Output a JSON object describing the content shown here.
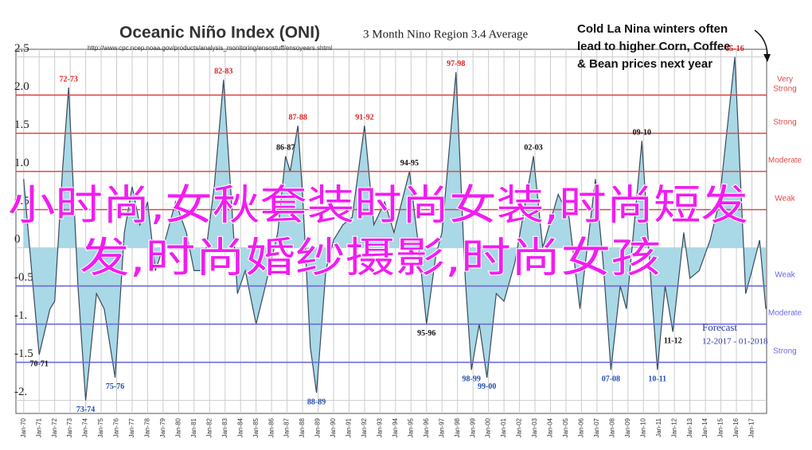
{
  "chart_data": {
    "type": "area",
    "title": "Oceanic Niño Index (ONI)",
    "subtitle": "3 Month Nino Region 3.4 Average",
    "source": "http://www.cpc.ncep.noaa.gov/products/analysis_monitoring/ensostuff/ensoyears.shtml",
    "callout": [
      "Cold La Nina winters often",
      "lead to higher Corn, Coffee",
      "& Bean prices next year"
    ],
    "forecast": "Forecast",
    "forecast_period": "12-2017 - 01-2018",
    "overlay_text": [
      "小时尚,女秋套装时尚女装,时尚短发",
      "发,时尚婚纱摄影,时尚女孩"
    ],
    "color": "#a9d8e6",
    "line_color": "#3a4a5a",
    "grid": true,
    "x": [
      1970.0,
      1970.6,
      1971.0,
      1971.7,
      1972.0,
      1972.5,
      1972.9,
      1973.5,
      1974.0,
      1974.7,
      1975.2,
      1975.9,
      1976.5,
      1977.0,
      1977.5,
      1978.0,
      1978.5,
      1979.0,
      1979.8,
      1980.5,
      1981.0,
      1981.6,
      1982.3,
      1982.9,
      1983.8,
      1984.3,
      1985.0,
      1985.6,
      1986.4,
      1986.9,
      1987.2,
      1987.7,
      1988.0,
      1988.5,
      1988.9,
      1989.5,
      1990.0,
      1990.6,
      1991.2,
      1992.0,
      1992.6,
      1993.3,
      1993.9,
      1994.9,
      1995.5,
      1996.0,
      1996.6,
      1997.0,
      1997.9,
      1998.5,
      1998.9,
      1999.4,
      1999.9,
      2000.5,
      2001.0,
      2001.7,
      2002.9,
      2003.5,
      2004.5,
      2005.2,
      2005.9,
      2006.9,
      2007.4,
      2007.9,
      2008.5,
      2008.9,
      2009.9,
      2010.5,
      2010.9,
      2011.4,
      2011.9,
      2012.6,
      2013.0,
      2013.6,
      2014.3,
      2014.9,
      2015.9,
      2016.6,
      2017.0,
      2017.5,
      2017.9
    ],
    "values": [
      0.9,
      -0.5,
      -1.4,
      -0.8,
      -0.7,
      1.0,
      2.1,
      -0.5,
      -2.0,
      -0.6,
      -0.8,
      -1.7,
      0.2,
      0.8,
      0.3,
      0.6,
      -0.3,
      0.0,
      0.6,
      0.2,
      -0.3,
      -0.3,
      0.8,
      2.2,
      -0.6,
      -0.3,
      -1.0,
      -0.5,
      0.2,
      1.2,
      1.0,
      1.6,
      0.7,
      -1.3,
      -1.9,
      -0.3,
      0.1,
      0.3,
      0.4,
      1.6,
      0.3,
      0.6,
      0.2,
      1.0,
      0.0,
      -1.0,
      -0.1,
      0.2,
      2.3,
      -0.4,
      -1.6,
      -1.0,
      -1.7,
      -0.6,
      -0.7,
      -0.2,
      1.2,
      0.0,
      0.7,
      0.4,
      -0.8,
      0.9,
      -0.2,
      -1.6,
      -0.5,
      -0.8,
      1.4,
      -0.5,
      -1.6,
      -0.5,
      -1.1,
      0.2,
      -0.4,
      -0.3,
      0.1,
      0.6,
      2.5,
      -0.6,
      -0.3,
      0.1,
      -0.8
    ],
    "point_labels": [
      null,
      null,
      "70-71",
      null,
      null,
      null,
      "72-73",
      null,
      "73-74",
      null,
      null,
      "75-76",
      null,
      null,
      null,
      null,
      null,
      null,
      null,
      null,
      null,
      null,
      null,
      "82-83",
      null,
      null,
      null,
      null,
      null,
      "86-87",
      null,
      "87-88",
      null,
      null,
      "88-89",
      null,
      null,
      null,
      null,
      "91-92",
      null,
      null,
      null,
      "94-95",
      null,
      "95-96",
      null,
      null,
      "97-98",
      null,
      "98-99",
      null,
      "99-00",
      null,
      null,
      null,
      "02-03",
      null,
      null,
      null,
      null,
      null,
      null,
      "07-08",
      null,
      null,
      "09-10",
      null,
      "10-11",
      null,
      "11-12",
      null,
      null,
      null,
      null,
      null,
      "15-16",
      null,
      null,
      null,
      null
    ],
    "thresholds": [
      {
        "value": 2,
        "label": [
          "Very",
          "Strong"
        ],
        "color": "#e04848"
      },
      {
        "value": 1.5,
        "label": [
          "Strong"
        ],
        "color": "#e04848"
      },
      {
        "value": 1,
        "label": [
          "Moderate"
        ],
        "color": "#e04848"
      },
      {
        "value": 0.5,
        "label": [
          "Weak"
        ],
        "color": "#e04848"
      },
      {
        "value": -0.5,
        "label": [
          "Weak"
        ],
        "color": "#6a6ae0"
      },
      {
        "value": -1,
        "label": [
          "Moderate"
        ],
        "color": "#6a6ae0"
      },
      {
        "value": -1.5,
        "label": [
          "Strong"
        ],
        "color": "#6a6ae0"
      }
    ],
    "xlim": [
      1969.5,
      2017.95
    ],
    "ylim": [
      -2.17,
      2.6
    ],
    "yticks": [
      {
        "value": -2,
        "label": "-2."
      },
      -1.5,
      {
        "value": -1,
        "label": "-1."
      },
      -0.5,
      0,
      0.5,
      {
        "value": 1,
        "label": "1.0"
      },
      1.5,
      {
        "value": 2,
        "label": "2.0"
      },
      2.5
    ],
    "xticks": [
      {
        "value": 1970,
        "label": "Jan-70"
      },
      {
        "value": 1971,
        "label": "Jan-71"
      },
      {
        "value": 1972,
        "label": "Jan-72"
      },
      {
        "value": 1973,
        "label": "Jan-73"
      },
      {
        "value": 1974,
        "label": "Jan-74"
      },
      {
        "value": 1975,
        "label": "Jan-75"
      },
      {
        "value": 1976,
        "label": "Jan-76"
      },
      {
        "value": 1977,
        "label": "Jan-77"
      },
      {
        "value": 1978,
        "label": "Jan-78"
      },
      {
        "value": 1979,
        "label": "Jan-79"
      },
      {
        "value": 1980,
        "label": "Jan-80"
      },
      {
        "value": 1981,
        "label": "Jan-81"
      },
      {
        "value": 1982,
        "label": "Jan-82"
      },
      {
        "value": 1983,
        "label": "Jan-83"
      },
      {
        "value": 1984,
        "label": "Jan-84"
      },
      {
        "value": 1985,
        "label": "Jan-85"
      },
      {
        "value": 1986,
        "label": "Jan-86"
      },
      {
        "value": 1987,
        "label": "Jan-87"
      },
      {
        "value": 1988,
        "label": "Jan-88"
      },
      {
        "value": 1989,
        "label": "Jan-89"
      },
      {
        "value": 1990,
        "label": "Jan-90"
      },
      {
        "value": 1991,
        "label": "Jan-91"
      },
      {
        "value": 1992,
        "label": "Jan-92"
      },
      {
        "value": 1993,
        "label": "Jan-93"
      },
      {
        "value": 1994,
        "label": "Jan-94"
      },
      {
        "value": 1995,
        "label": "Jan-95"
      },
      {
        "value": 1996,
        "label": "Jan-96"
      },
      {
        "value": 1997,
        "label": "Jan-97"
      },
      {
        "value": 1998,
        "label": "Jan-98"
      },
      {
        "value": 1999,
        "label": "Jan-99"
      },
      {
        "value": 2000,
        "label": "Jan-00"
      },
      {
        "value": 2001,
        "label": "Jan-01"
      },
      {
        "value": 2002,
        "label": "Jan-02"
      },
      {
        "value": 2003,
        "label": "Jan-03"
      },
      {
        "value": 2004,
        "label": "Jan-04"
      },
      {
        "value": 2005,
        "label": "Jan-05"
      },
      {
        "value": 2006,
        "label": "Jan-06"
      },
      {
        "value": 2007,
        "label": "Jan-07"
      },
      {
        "value": 2008,
        "label": "Jan-08"
      },
      {
        "value": 2009,
        "label": "Jan-09"
      },
      {
        "value": 2010,
        "label": "Jan-10"
      },
      {
        "value": 2011,
        "label": "Jan-11"
      },
      {
        "value": 2012,
        "label": "Jan-12"
      },
      {
        "value": 2013,
        "label": "Jan-13"
      },
      {
        "value": 2014,
        "label": "Jan-14"
      },
      {
        "value": 2015,
        "label": "Jan-15"
      },
      {
        "value": 2016,
        "label": "Jan-16"
      },
      {
        "value": 2017,
        "label": "Jan-17"
      }
    ]
  }
}
